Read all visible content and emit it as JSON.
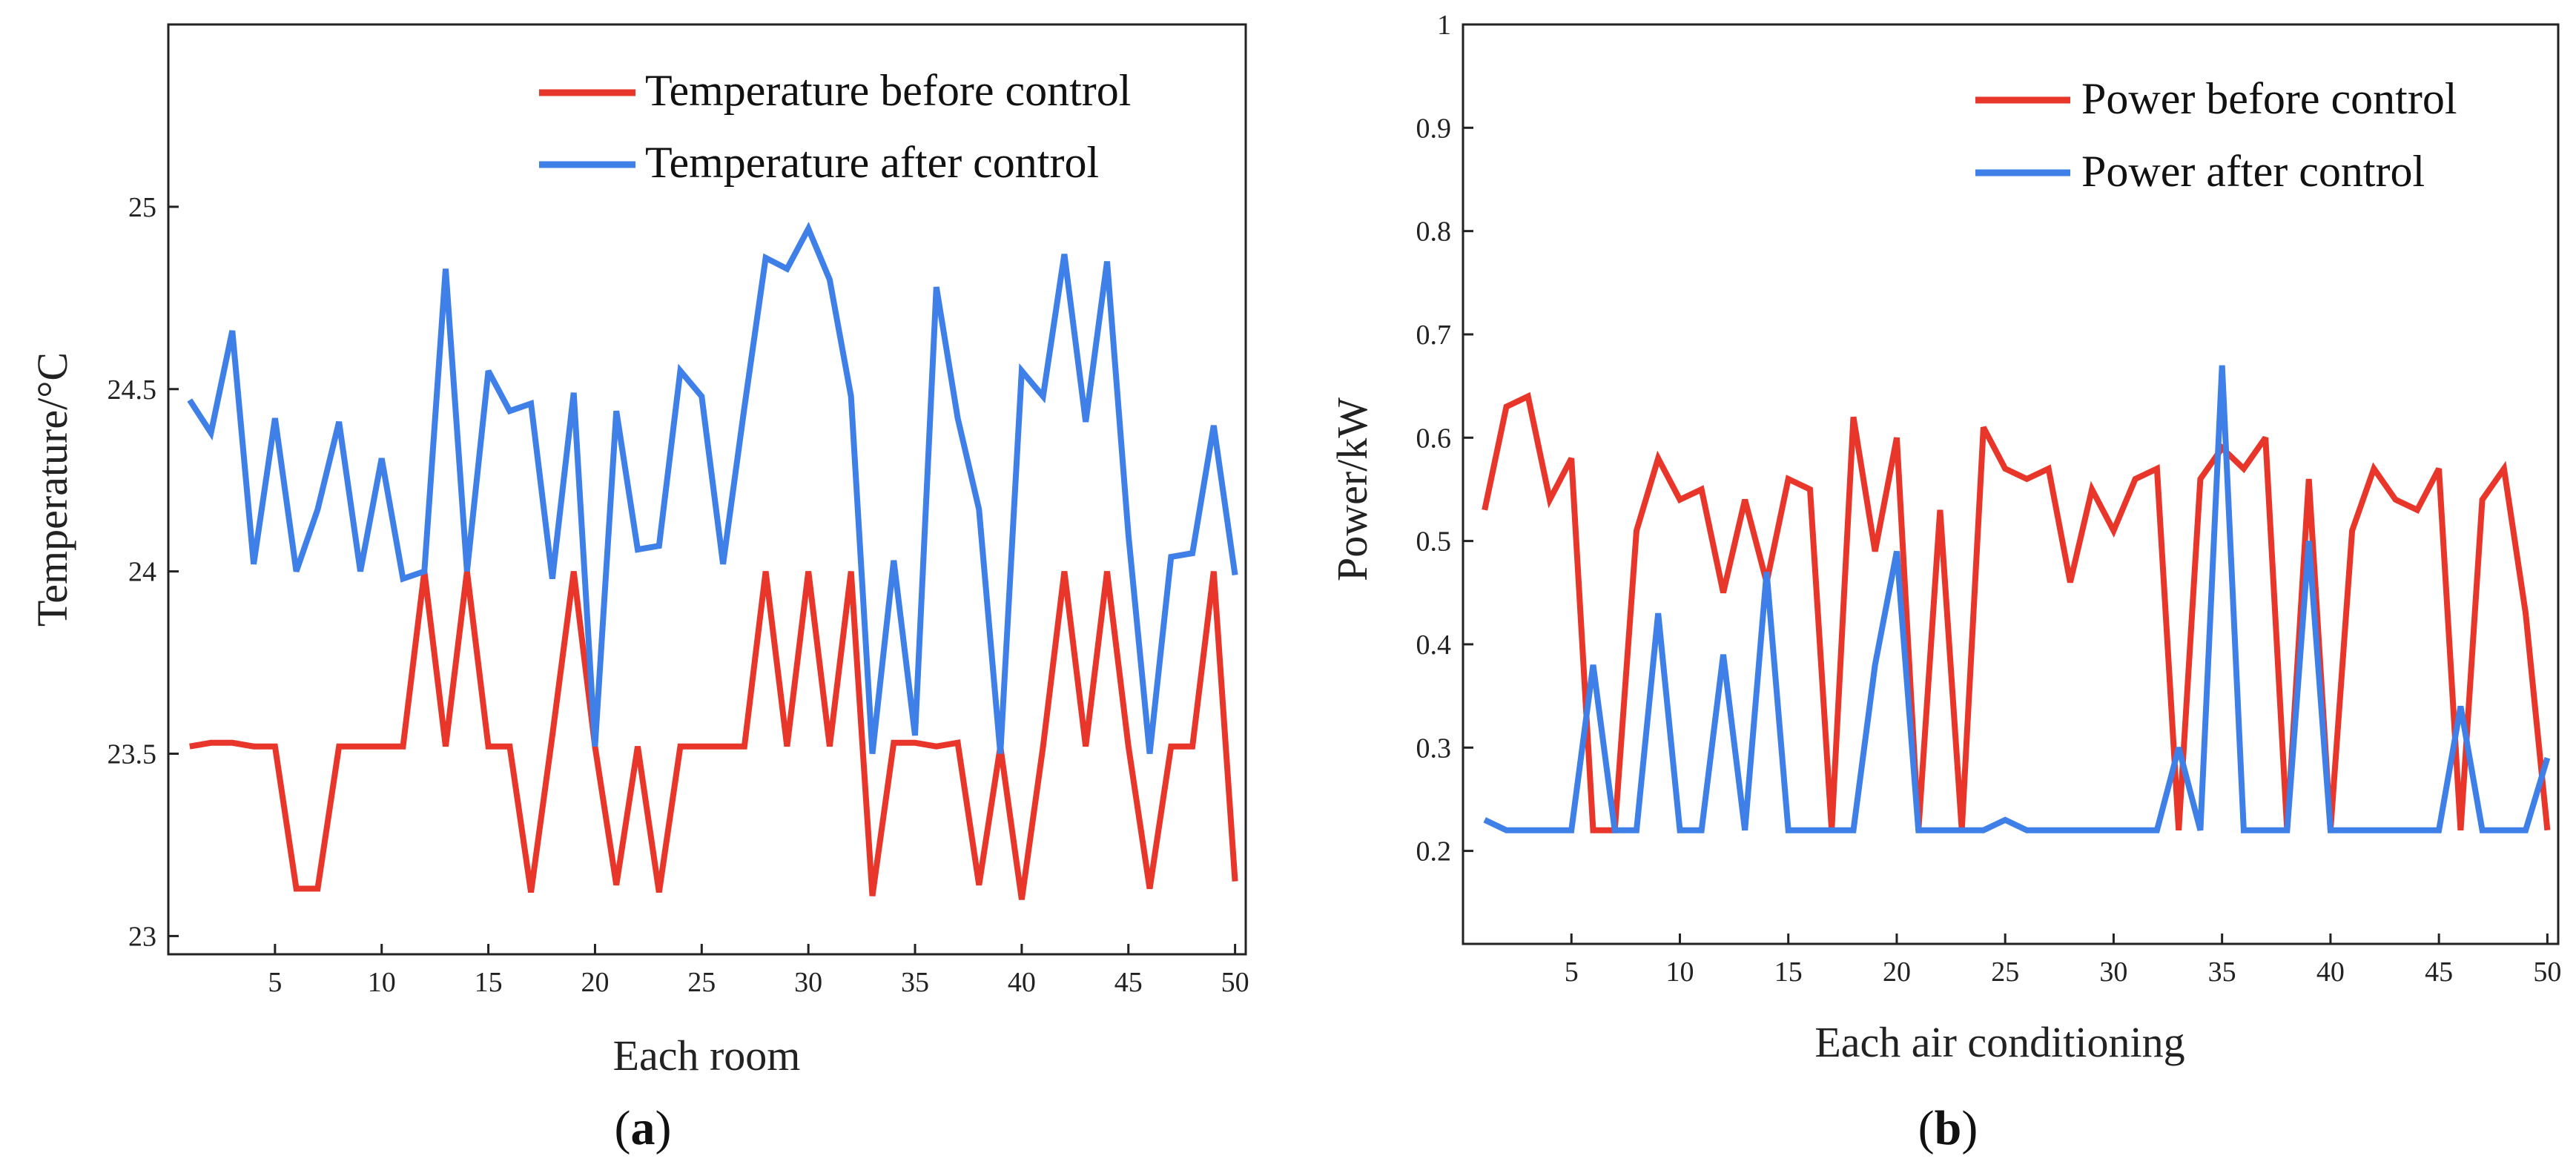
{
  "colors": {
    "red": "#e8362b",
    "blue": "#3f7fe8",
    "axis": "#222222"
  },
  "chart_data": [
    {
      "type": "line",
      "panel": "a",
      "xlabel": "Each room",
      "ylabel": "Temperature/°C",
      "xlim": [
        0,
        50.5
      ],
      "ylim": [
        22.95,
        25.5
      ],
      "xticks": [
        5,
        10,
        15,
        20,
        25,
        30,
        35,
        40,
        45,
        50
      ],
      "yticks": [
        23,
        23.5,
        24,
        24.5,
        25
      ],
      "ytick_labels": [
        "23",
        "23.5",
        "24",
        "24.5",
        "25"
      ],
      "legend_position": "top-right",
      "x": [
        1,
        2,
        3,
        4,
        5,
        6,
        7,
        8,
        9,
        10,
        11,
        12,
        13,
        14,
        15,
        16,
        17,
        18,
        19,
        20,
        21,
        22,
        23,
        24,
        25,
        26,
        27,
        28,
        29,
        30,
        31,
        32,
        33,
        34,
        35,
        36,
        37,
        38,
        39,
        40,
        41,
        42,
        43,
        44,
        45,
        46,
        47,
        48,
        49,
        50
      ],
      "series": [
        {
          "name": "Temperature before control",
          "color": "#e8362b",
          "values": [
            23.52,
            23.53,
            23.53,
            23.52,
            23.52,
            23.13,
            23.13,
            23.52,
            23.52,
            23.52,
            23.52,
            24.0,
            23.52,
            24.0,
            23.52,
            23.52,
            23.12,
            23.55,
            24.0,
            23.52,
            23.14,
            23.52,
            23.12,
            23.52,
            23.52,
            23.52,
            23.52,
            24.0,
            23.52,
            24.0,
            23.52,
            24.0,
            23.11,
            23.53,
            23.53,
            23.52,
            23.53,
            23.14,
            23.52,
            23.1,
            23.52,
            24.0,
            23.52,
            24.0,
            23.52,
            23.13,
            23.52,
            23.52,
            24.0,
            23.15
          ]
        },
        {
          "name": "Temperature after control",
          "color": "#3f7fe8",
          "values": [
            24.47,
            24.38,
            24.66,
            24.02,
            24.42,
            24.0,
            24.17,
            24.41,
            24.0,
            24.31,
            23.98,
            24.0,
            24.83,
            24.0,
            24.55,
            24.44,
            24.46,
            23.98,
            24.49,
            23.52,
            24.44,
            24.06,
            24.07,
            24.55,
            24.48,
            24.02,
            24.45,
            24.86,
            24.83,
            24.94,
            24.8,
            24.48,
            23.5,
            24.03,
            23.55,
            24.78,
            24.42,
            24.17,
            23.5,
            24.55,
            24.48,
            24.87,
            24.41,
            24.85,
            24.1,
            23.5,
            24.04,
            24.05,
            24.4,
            23.99
          ]
        }
      ]
    },
    {
      "type": "line",
      "panel": "b",
      "xlabel": "Each air conditioning",
      "ylabel": "Power/kW",
      "xlim": [
        0,
        50.5
      ],
      "ylim": [
        0.11,
        1.0
      ],
      "xticks": [
        5,
        10,
        15,
        20,
        25,
        30,
        35,
        40,
        45,
        50
      ],
      "yticks": [
        0.2,
        0.3,
        0.4,
        0.5,
        0.6,
        0.7,
        0.8,
        0.9,
        1.0
      ],
      "ytick_labels": [
        "0.2",
        "0.3",
        "0.4",
        "0.5",
        "0.6",
        "0.7",
        "0.8",
        "0.9",
        "1"
      ],
      "legend_position": "top-right",
      "x": [
        1,
        2,
        3,
        4,
        5,
        6,
        7,
        8,
        9,
        10,
        11,
        12,
        13,
        14,
        15,
        16,
        17,
        18,
        19,
        20,
        21,
        22,
        23,
        24,
        25,
        26,
        27,
        28,
        29,
        30,
        31,
        32,
        33,
        34,
        35,
        36,
        37,
        38,
        39,
        40,
        41,
        42,
        43,
        44,
        45,
        46,
        47,
        48,
        49,
        50
      ],
      "series": [
        {
          "name": "Power before control",
          "color": "#e8362b",
          "values": [
            0.53,
            0.63,
            0.64,
            0.54,
            0.58,
            0.22,
            0.22,
            0.51,
            0.58,
            0.54,
            0.55,
            0.45,
            0.54,
            0.46,
            0.56,
            0.55,
            0.22,
            0.62,
            0.49,
            0.6,
            0.22,
            0.53,
            0.22,
            0.61,
            0.57,
            0.56,
            0.57,
            0.46,
            0.55,
            0.51,
            0.56,
            0.57,
            0.22,
            0.56,
            0.59,
            0.57,
            0.6,
            0.22,
            0.56,
            0.22,
            0.51,
            0.57,
            0.54,
            0.53,
            0.57,
            0.22,
            0.54,
            0.57,
            0.43,
            0.22
          ]
        },
        {
          "name": "Power after control",
          "color": "#3f7fe8",
          "values": [
            0.23,
            0.22,
            0.22,
            0.22,
            0.22,
            0.38,
            0.22,
            0.22,
            0.43,
            0.22,
            0.22,
            0.39,
            0.22,
            0.47,
            0.22,
            0.22,
            0.22,
            0.22,
            0.38,
            0.49,
            0.22,
            0.22,
            0.22,
            0.22,
            0.23,
            0.22,
            0.22,
            0.22,
            0.22,
            0.22,
            0.22,
            0.22,
            0.3,
            0.22,
            0.67,
            0.22,
            0.22,
            0.22,
            0.5,
            0.22,
            0.22,
            0.22,
            0.22,
            0.22,
            0.22,
            0.34,
            0.22,
            0.22,
            0.22,
            0.29
          ]
        }
      ]
    }
  ],
  "panel_labels": [
    {
      "open": "(",
      "letter": "a",
      "close": ")"
    },
    {
      "open": "(",
      "letter": "b",
      "close": ")"
    }
  ]
}
